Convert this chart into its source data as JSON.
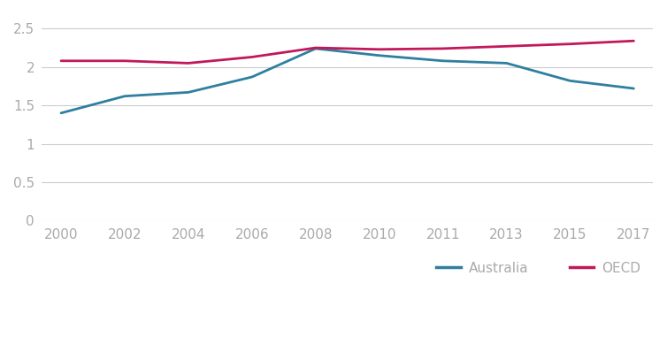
{
  "australia_years": [
    2000,
    2002,
    2004,
    2006,
    2008,
    2010,
    2011,
    2013,
    2015,
    2017
  ],
  "australia_values": [
    1.4,
    1.62,
    1.67,
    1.87,
    2.24,
    2.15,
    2.08,
    2.05,
    1.82,
    1.72
  ],
  "oecd_years": [
    2000,
    2002,
    2004,
    2006,
    2008,
    2010,
    2011,
    2013,
    2015,
    2017
  ],
  "oecd_values": [
    2.08,
    2.08,
    2.05,
    2.13,
    2.25,
    2.23,
    2.24,
    2.27,
    2.3,
    2.34
  ],
  "x_tick_labels": [
    "2000",
    "2002",
    "2004",
    "2006",
    "2008",
    "2010",
    "2011",
    "2013",
    "2015",
    "2017"
  ],
  "australia_color": "#2E7FA0",
  "oecd_color": "#C2185B",
  "line_width": 2.0,
  "ylim": [
    0,
    2.7
  ],
  "yticks": [
    0,
    0.5,
    1.0,
    1.5,
    2.0,
    2.5
  ],
  "ytick_labels": [
    "0",
    "0.5",
    "1",
    "1.5",
    "2",
    "2.5"
  ],
  "background_color": "#ffffff",
  "grid_color": "#cccccc",
  "tick_label_color": "#aaaaaa",
  "legend_australia": "Australia",
  "legend_oecd": "OECD",
  "figsize": [
    7.54,
    3.81
  ],
  "dpi": 100
}
